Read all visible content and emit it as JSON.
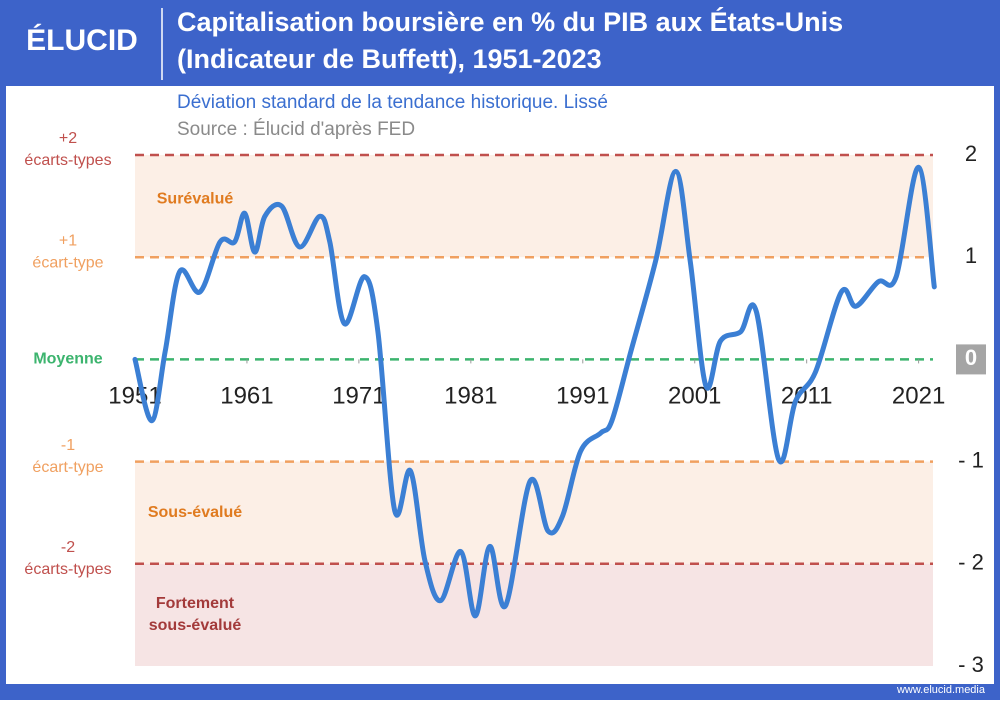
{
  "header": {
    "logo": "ÉLUCID"
  },
  "footer": {
    "url": "www.elucid.media"
  },
  "chart_data": {
    "type": "line",
    "title": [
      "Capitalisation boursière en % du PIB aux États-Unis",
      "(Indicateur de Buffett), 1951-2023"
    ],
    "subtitle": "Déviation standard de la tendance historique. Lissé",
    "source": "Source : Élucid d'après FED",
    "xlim": [
      1951,
      2023
    ],
    "xticks": [
      1951,
      1961,
      1971,
      1981,
      1991,
      2001,
      2011,
      2021
    ],
    "ylim": [
      -3,
      2
    ],
    "yticks": [
      2,
      1,
      0,
      {
        "value": -1,
        "label": "- 1"
      },
      {
        "value": -2,
        "label": "- 2"
      },
      {
        "value": -3,
        "label": "- 3"
      }
    ],
    "zones": [
      {
        "from": 1,
        "to": 2,
        "color": "#fcefe6",
        "label": [
          "Surévalué"
        ],
        "label_color": "#e07b20"
      },
      {
        "from": -2,
        "to": -1,
        "color": "#fcefe6",
        "label": [
          "Sous-évalué"
        ],
        "label_color": "#e07b20"
      },
      {
        "from": -3,
        "to": -2,
        "color": "#f6e4e4",
        "label": [
          "Fortement",
          "sous-évalué"
        ],
        "label_color": "#a33a3a"
      }
    ],
    "reference_lines": [
      {
        "value": 2,
        "color": "#c0504d",
        "label": [
          "+2",
          "écarts-types"
        ]
      },
      {
        "value": 1,
        "color": "#f0a060",
        "label": [
          "+1",
          "écart-type"
        ]
      },
      {
        "value": 0,
        "color": "#3cb46e",
        "label": [
          "Moyenne"
        ]
      },
      {
        "value": -1,
        "color": "#f0a060",
        "label": [
          "-1",
          "écart-type"
        ]
      },
      {
        "value": -2,
        "color": "#c0504d",
        "label": [
          "-2",
          "écarts-types"
        ]
      }
    ],
    "series": [
      {
        "name": "Indicateur de Buffett",
        "color": "#3b7fd4",
        "x": [
          1951,
          1952.5,
          1953.7,
          1955,
          1956.8,
          1958.6,
          1959.9,
          1960.8,
          1961.7,
          1962.6,
          1964.1,
          1965.7,
          1967.5,
          1968.4,
          1969.7,
          1971.5,
          1972.7,
          1974.2,
          1975.6,
          1976.9,
          1978.3,
          1980.1,
          1981.4,
          1982.7,
          1984.1,
          1986.3,
          1987.9,
          1989.2,
          1990.8,
          1992.6,
          1993.6,
          1995.3,
          1997.5,
          1999.3,
          2000.6,
          2002,
          2003.3,
          2005.1,
          2006.5,
          2008.5,
          2010,
          2011.8,
          2014.1,
          2015.4,
          2017.4,
          2019,
          2021,
          2022.4
        ],
        "values": [
          0,
          -0.6,
          0.08,
          0.86,
          0.66,
          1.15,
          1.15,
          1.43,
          1.05,
          1.4,
          1.5,
          1.1,
          1.4,
          1.15,
          0.35,
          0.81,
          0.27,
          -1.48,
          -1.09,
          -1.97,
          -2.36,
          -1.88,
          -2.51,
          -1.83,
          -2.41,
          -1.19,
          -1.68,
          -1.53,
          -0.9,
          -0.72,
          -0.6,
          0.08,
          0.96,
          1.84,
          0.96,
          -0.26,
          0.18,
          0.27,
          0.47,
          -0.98,
          -0.41,
          -0.12,
          0.66,
          0.52,
          0.76,
          0.81,
          1.88,
          0.71
        ]
      }
    ]
  }
}
